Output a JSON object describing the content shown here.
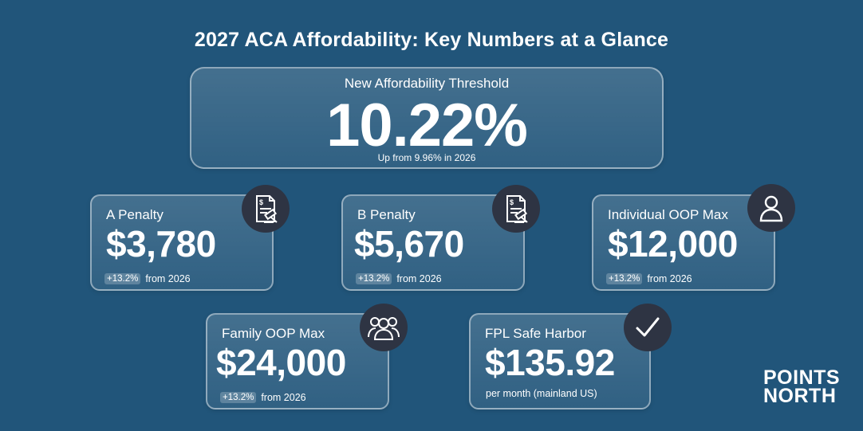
{
  "title": "2027 ACA Affordability: Key Numbers at a Glance",
  "hero": {
    "label": "New Affordability Threshold",
    "value": "10.22%",
    "sub": "Up from 9.96% in 2026"
  },
  "cards": [
    {
      "label": "A Penalty",
      "value": "$3,780",
      "chip": "+13.2%",
      "note": "from 2026",
      "icon": "document-gavel-icon"
    },
    {
      "label": "B Penalty",
      "value": "$5,670",
      "chip": "+13.2%",
      "note": "from 2026",
      "icon": "document-gavel-icon"
    },
    {
      "label": "Individual OOP Max",
      "value": "$12,000",
      "chip": "+13.2%",
      "note": "from 2026",
      "icon": "person-icon"
    },
    {
      "label": "Family OOP Max",
      "value": "$24,000",
      "chip": "+13.2%",
      "note": "from 2026",
      "icon": "group-icon"
    },
    {
      "label": "FPL Safe Harbor",
      "value": "$135.92",
      "note": "per month (mainland US)",
      "icon": "checkmark-icon"
    }
  ],
  "logo": {
    "line1": "POINTS",
    "line2": "NORTH"
  },
  "colors": {
    "background": "#21557a",
    "icon_bg": "#2e3443",
    "text": "#ffffff"
  }
}
